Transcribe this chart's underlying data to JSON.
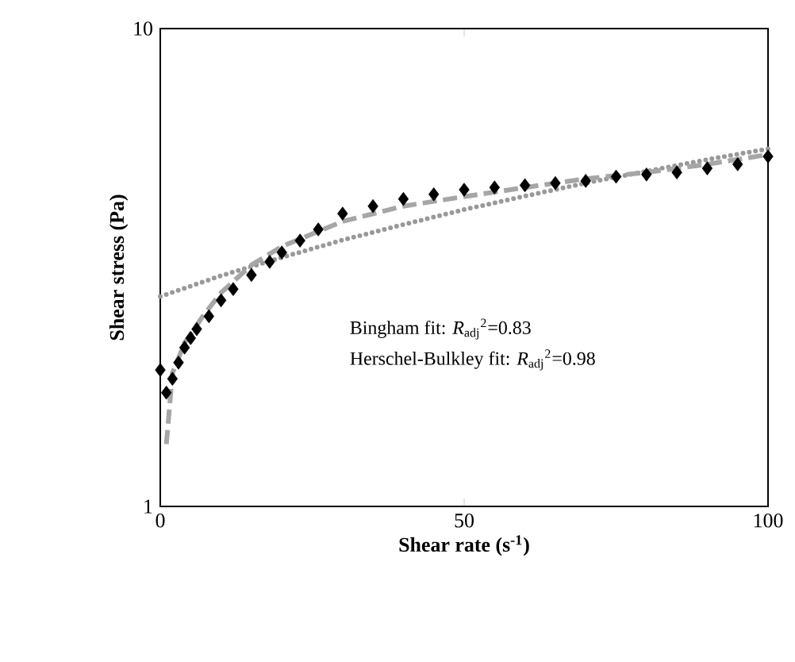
{
  "chart_data": {
    "type": "scatter",
    "xlabel": "Shear rate (s$^{-1}$)",
    "ylabel": "Shear stress (Pa)",
    "log": "y",
    "xlim": [
      0,
      100
    ],
    "ylim": [
      1,
      10
    ],
    "xticks": [
      0,
      50,
      100
    ],
    "yticks": [
      1,
      10
    ],
    "grid": false,
    "annotations": [
      "Bingham fit: *R*$_{adj}$$^{2}$=0.83",
      "Herschel-Bulkley fit: *R*$_{adj}$$^{2}$=0.98"
    ],
    "series": [
      {
        "marker": "diamond",
        "color": "#000000",
        "x": [
          0,
          1,
          2,
          3,
          4,
          5,
          6,
          8,
          10,
          12,
          15,
          18,
          20,
          23,
          26,
          30,
          35,
          40,
          45,
          50,
          55,
          60,
          65,
          70,
          75,
          80,
          85,
          90,
          95,
          100
        ],
        "values": [
          1.93,
          1.73,
          1.85,
          2.0,
          2.15,
          2.25,
          2.35,
          2.5,
          2.7,
          2.85,
          3.05,
          3.25,
          3.4,
          3.6,
          3.8,
          4.1,
          4.25,
          4.4,
          4.5,
          4.6,
          4.65,
          4.7,
          4.75,
          4.8,
          4.9,
          4.95,
          5.0,
          5.1,
          5.2,
          5.4
        ]
      },
      {
        "type": "line",
        "line_style": "dotted",
        "color": "#999999",
        "x": [
          0,
          10,
          20,
          30,
          40,
          50,
          60,
          70,
          80,
          90,
          100
        ],
        "values": [
          2.75,
          3.04,
          3.32,
          3.61,
          3.89,
          4.18,
          4.46,
          4.75,
          5.03,
          5.32,
          5.6
        ]
      },
      {
        "type": "line",
        "line_style": "dashed",
        "color": "#a6a6a6",
        "x": [
          1,
          2,
          4,
          7,
          10,
          15,
          20,
          30,
          40,
          50,
          60,
          70,
          80,
          90,
          100
        ],
        "values": [
          1.35,
          1.9,
          2.2,
          2.5,
          2.8,
          3.2,
          3.5,
          3.95,
          4.25,
          4.45,
          4.65,
          4.85,
          5.0,
          5.2,
          5.45
        ]
      }
    ]
  }
}
